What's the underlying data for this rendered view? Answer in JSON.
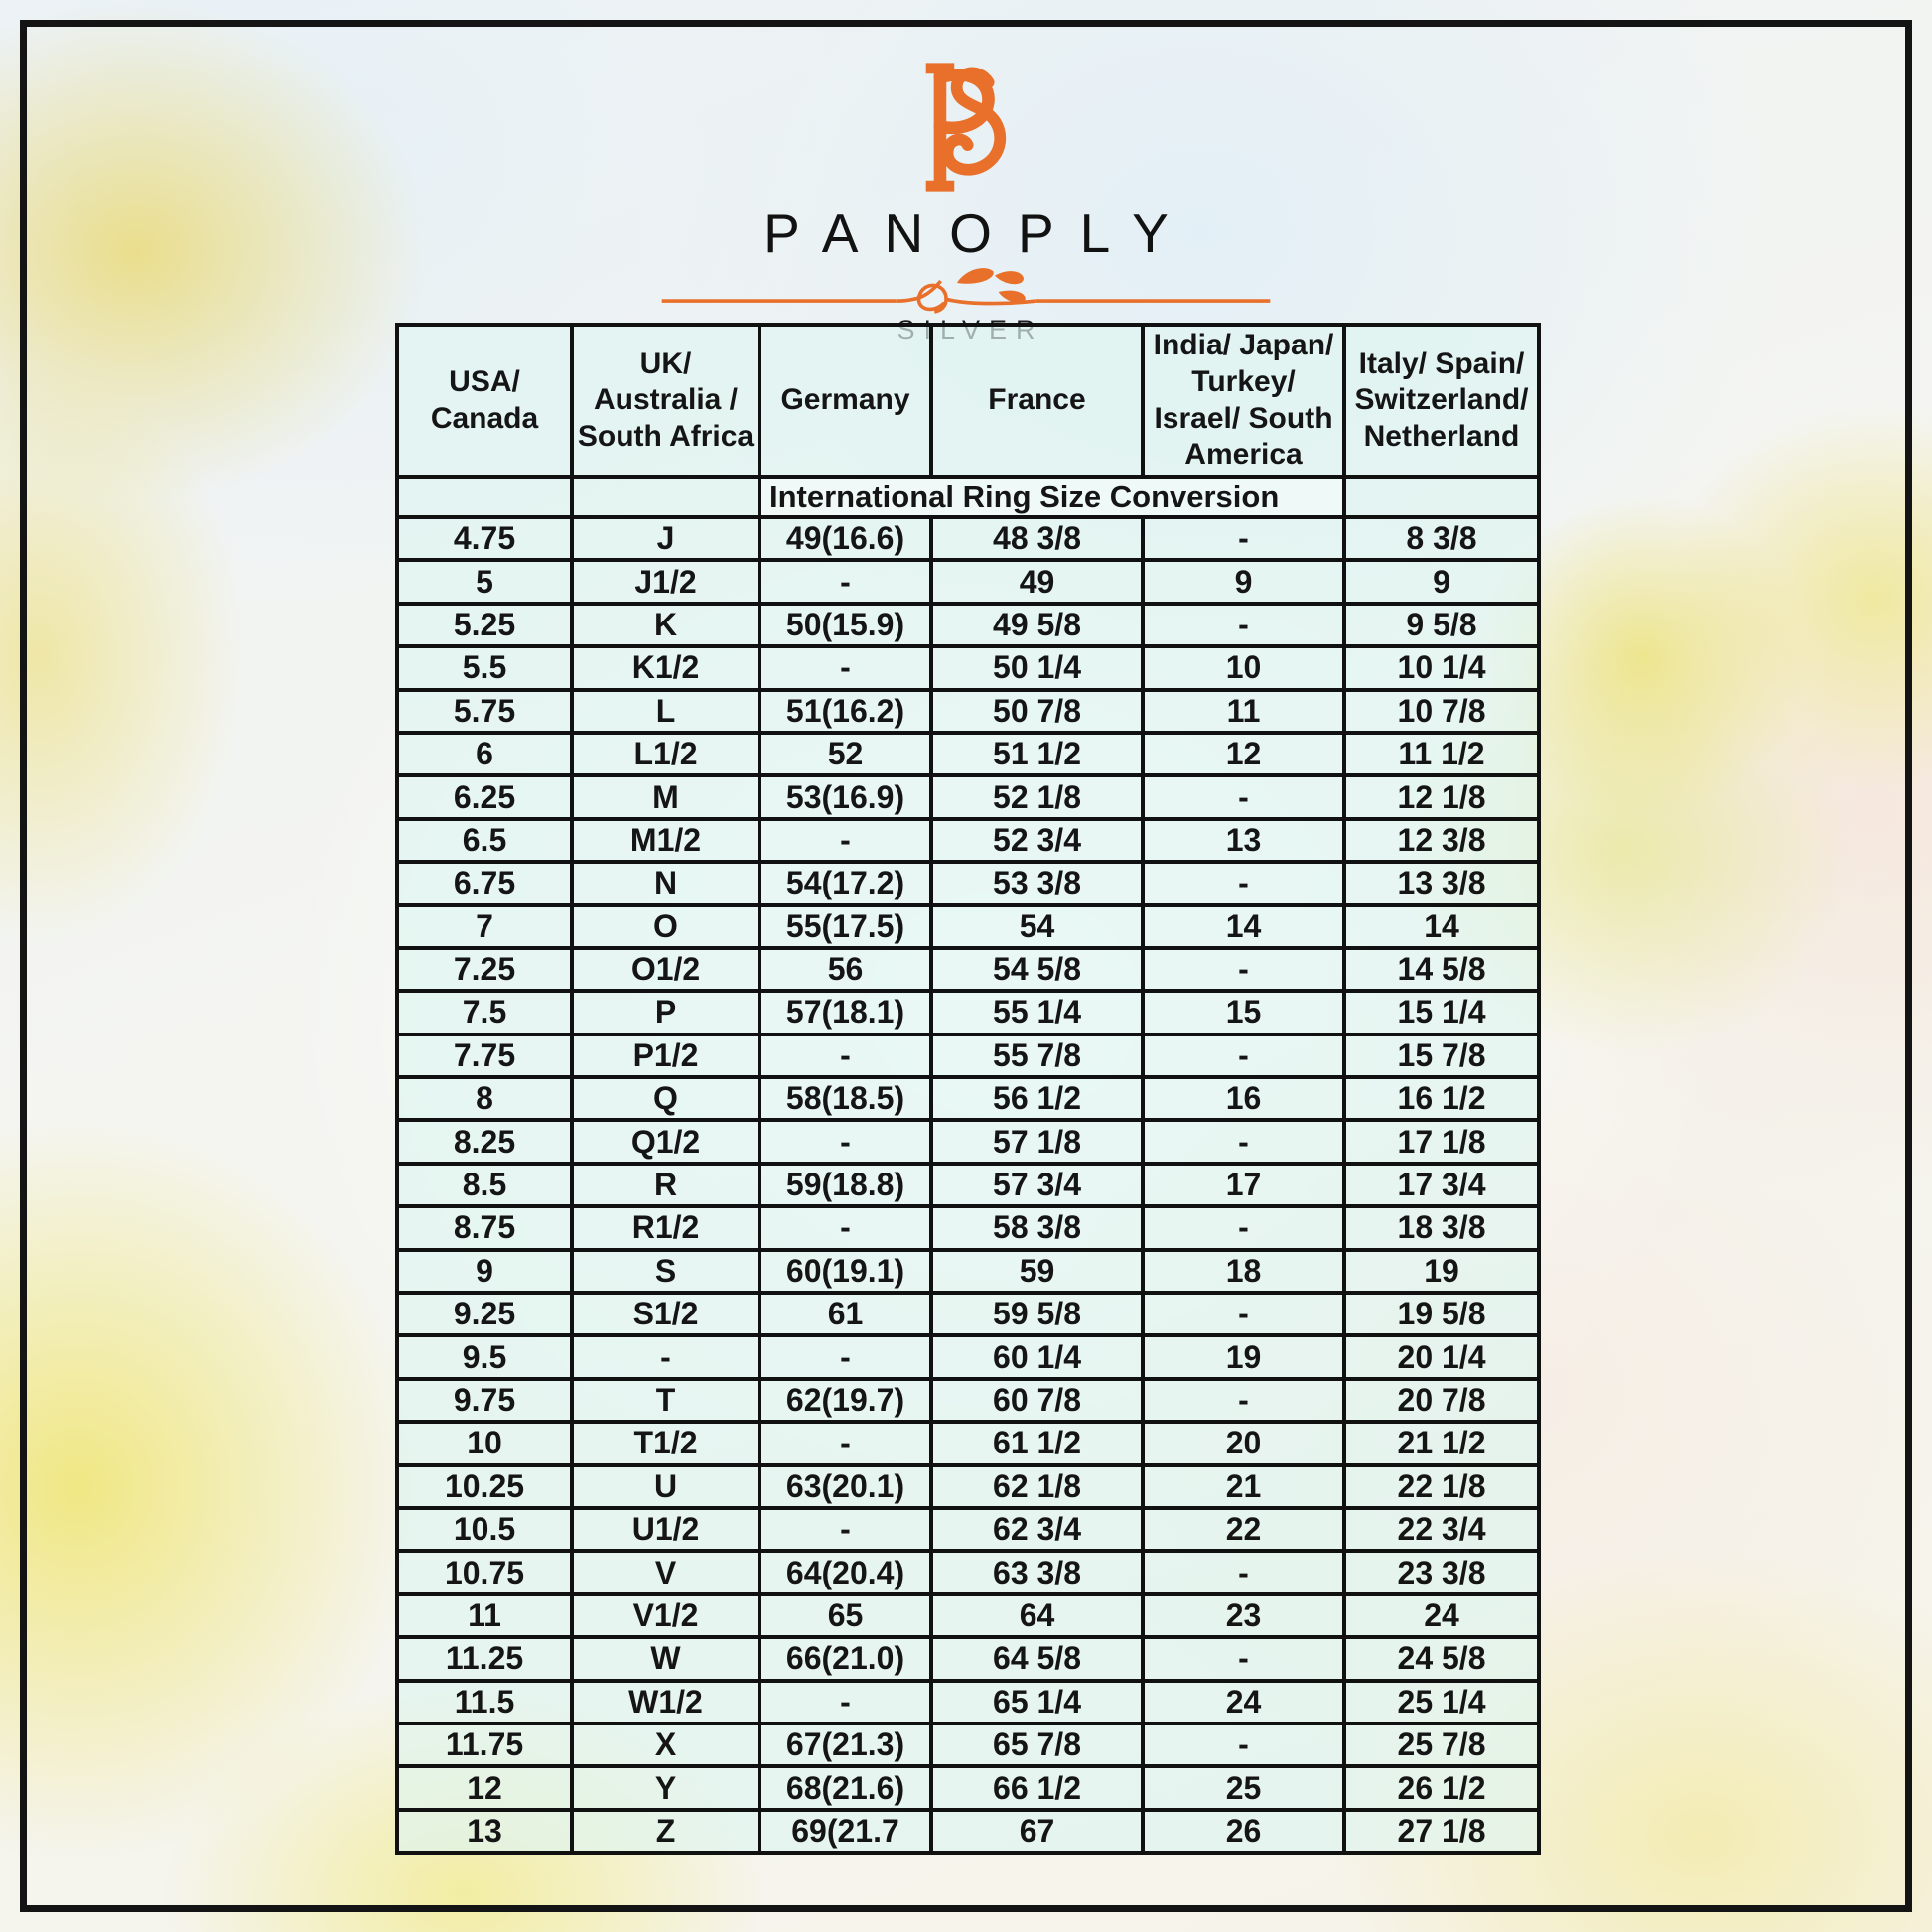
{
  "brand": {
    "monogram": "PS",
    "name": "PANOPLY",
    "subtitle": "SILVER",
    "accent_color": "#E8702A"
  },
  "table": {
    "title": "International Ring Size Conversion",
    "columns": [
      "USA/\nCanada",
      "UK/\nAustralia /\nSouth Africa",
      "Germany",
      "France",
      "India/ Japan/\nTurkey/\nIsrael/ South\nAmerica",
      "Italy/ Spain/\nSwitzerland/\nNetherland"
    ],
    "rows": [
      [
        "4.75",
        "J",
        "49(16.6)",
        "48 3/8",
        "-",
        "8 3/8"
      ],
      [
        "5",
        "J1/2",
        "-",
        "49",
        "9",
        "9"
      ],
      [
        "5.25",
        "K",
        "50(15.9)",
        "49 5/8",
        "-",
        "9 5/8"
      ],
      [
        "5.5",
        "K1/2",
        "-",
        "50 1/4",
        "10",
        "10 1/4"
      ],
      [
        "5.75",
        "L",
        "51(16.2)",
        "50 7/8",
        "11",
        "10 7/8"
      ],
      [
        "6",
        "L1/2",
        "52",
        "51 1/2",
        "12",
        "11 1/2"
      ],
      [
        "6.25",
        "M",
        "53(16.9)",
        "52 1/8",
        "-",
        "12 1/8"
      ],
      [
        "6.5",
        "M1/2",
        "-",
        "52 3/4",
        "13",
        "12 3/8"
      ],
      [
        "6.75",
        "N",
        "54(17.2)",
        "53 3/8",
        "-",
        "13 3/8"
      ],
      [
        "7",
        "O",
        "55(17.5)",
        "54",
        "14",
        "14"
      ],
      [
        "7.25",
        "O1/2",
        "56",
        "54 5/8",
        "-",
        "14 5/8"
      ],
      [
        "7.5",
        "P",
        "57(18.1)",
        "55 1/4",
        "15",
        "15 1/4"
      ],
      [
        "7.75",
        "P1/2",
        "-",
        "55 7/8",
        "-",
        "15 7/8"
      ],
      [
        "8",
        "Q",
        "58(18.5)",
        "56 1/2",
        "16",
        "16 1/2"
      ],
      [
        "8.25",
        "Q1/2",
        "-",
        "57 1/8",
        "-",
        "17 1/8"
      ],
      [
        "8.5",
        "R",
        "59(18.8)",
        "57 3/4",
        "17",
        "17 3/4"
      ],
      [
        "8.75",
        "R1/2",
        "-",
        "58 3/8",
        "-",
        "18 3/8"
      ],
      [
        "9",
        "S",
        "60(19.1)",
        "59",
        "18",
        "19"
      ],
      [
        "9.25",
        "S1/2",
        "61",
        "59 5/8",
        "-",
        "19 5/8"
      ],
      [
        "9.5",
        "-",
        "-",
        "60 1/4",
        "19",
        "20 1/4"
      ],
      [
        "9.75",
        "T",
        "62(19.7)",
        "60 7/8",
        "-",
        "20 7/8"
      ],
      [
        "10",
        "T1/2",
        "-",
        "61 1/2",
        "20",
        "21 1/2"
      ],
      [
        "10.25",
        "U",
        "63(20.1)",
        "62 1/8",
        "21",
        "22 1/8"
      ],
      [
        "10.5",
        "U1/2",
        "-",
        "62 3/4",
        "22",
        "22 3/4"
      ],
      [
        "10.75",
        "V",
        "64(20.4)",
        "63 3/8",
        "-",
        "23 3/8"
      ],
      [
        "11",
        "V1/2",
        "65",
        "64",
        "23",
        "24"
      ],
      [
        "11.25",
        "W",
        "66(21.0)",
        "64 5/8",
        "-",
        "24 5/8"
      ],
      [
        "11.5",
        "W1/2",
        "-",
        "65 1/4",
        "24",
        "25 1/4"
      ],
      [
        "11.75",
        "X",
        "67(21.3)",
        "65 7/8",
        "-",
        "25 7/8"
      ],
      [
        "12",
        "Y",
        "68(21.6)",
        "66 1/2",
        "25",
        "26 1/2"
      ],
      [
        "13",
        "Z",
        "69(21.7",
        "67",
        "26",
        "27 1/8"
      ]
    ]
  }
}
